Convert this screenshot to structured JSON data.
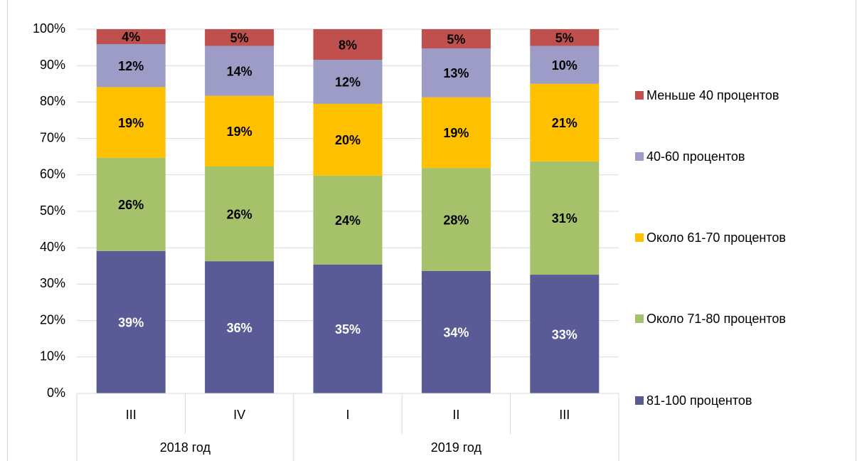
{
  "chart_data": {
    "type": "stacked_bar",
    "categories": [
      "III",
      "IV",
      "I",
      "II",
      "III"
    ],
    "category_groups": [
      "2018 год",
      "2018 год",
      "2019 год",
      "2019 год",
      "2019 год"
    ],
    "series": [
      {
        "name": "81-100 процентов",
        "color": "#5a5a96",
        "values": [
          39.1,
          36.3,
          35.4,
          33.6,
          32.6
        ],
        "value_labels": [
          "39%",
          "36%",
          "35%",
          "34%",
          "33%"
        ]
      },
      {
        "name": "Около 71-80 процентов",
        "color": "#a5c26b",
        "values": [
          25.6,
          26.0,
          24.4,
          28.3,
          31.1
        ],
        "value_labels": [
          "26%",
          "26%",
          "24%",
          "28%",
          "31%"
        ]
      },
      {
        "name": "Около 61-70 процентов",
        "color": "#ffc000",
        "values": [
          19.4,
          19.4,
          19.7,
          19.4,
          21.3
        ],
        "value_labels": [
          "19%",
          "19%",
          "20%",
          "19%",
          "21%"
        ]
      },
      {
        "name": "40-60 процентов",
        "color": "#9c9cc6",
        "values": [
          11.8,
          13.7,
          12.1,
          13.4,
          10.4
        ],
        "value_labels": [
          "12%",
          "14%",
          "12%",
          "13%",
          "10%"
        ]
      },
      {
        "name": "Меньше 40 процентов",
        "color": "#c0504d",
        "values": [
          4.1,
          4.6,
          8.4,
          5.3,
          4.6
        ],
        "value_labels": [
          "4%",
          "5%",
          "8%",
          "5%",
          "5%"
        ]
      }
    ],
    "ylim": [
      0,
      100
    ],
    "yticks": [
      {
        "value": 0,
        "label": "0%"
      },
      {
        "value": 10,
        "label": "10%"
      },
      {
        "value": 20,
        "label": "20%"
      },
      {
        "value": 30,
        "label": "30%"
      },
      {
        "value": 40,
        "label": "40%"
      },
      {
        "value": 50,
        "label": "50%"
      },
      {
        "value": 60,
        "label": "60%"
      },
      {
        "value": 70,
        "label": "70%"
      },
      {
        "value": 80,
        "label": "80%"
      },
      {
        "value": 90,
        "label": "90%"
      },
      {
        "value": 100,
        "label": "100%"
      }
    ],
    "grid": true,
    "legend": "right"
  }
}
